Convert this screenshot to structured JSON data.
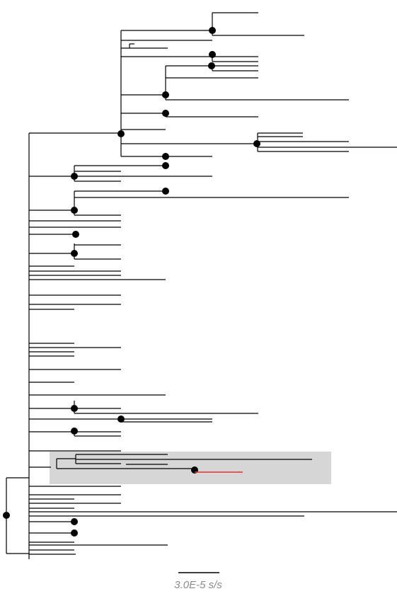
{
  "figure": {
    "type": "phylogenetic-tree",
    "scale_bar": {
      "label": "3.0E-5 s/s"
    },
    "highlighted_clade": {
      "fill": "#d6d6d6"
    },
    "highlighted_branch": {
      "color": "#e03030"
    },
    "branch_color": "#000000",
    "node_marker_color": "#000000"
  }
}
